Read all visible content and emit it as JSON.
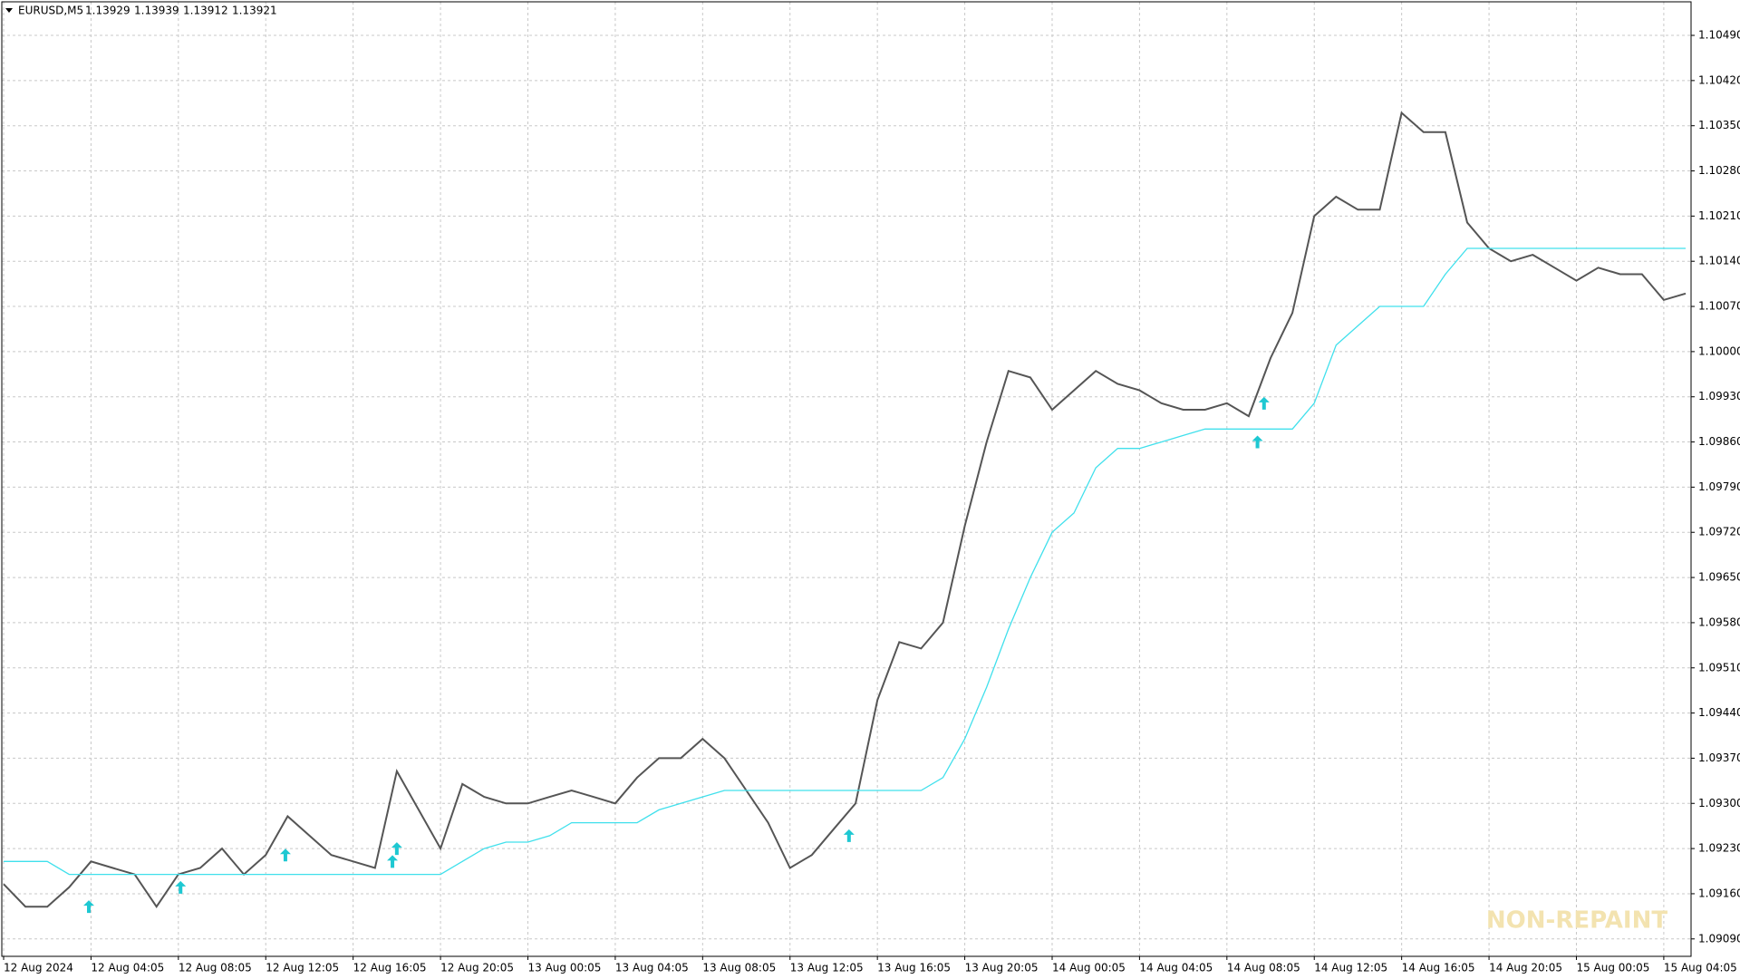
{
  "header": {
    "symbol": "EURUSD,M5",
    "quote": [
      1.13929,
      1.13939,
      1.13912,
      1.13921
    ]
  },
  "watermark": "NON-REPAINT",
  "chart_data": {
    "type": "line",
    "categories": [
      "12 Aug 2024",
      null,
      null,
      null,
      "12 Aug 04:05",
      null,
      null,
      null,
      "12 Aug 08:05",
      null,
      null,
      null,
      "12 Aug 12:05",
      null,
      null,
      null,
      "12 Aug 16:05",
      null,
      null,
      null,
      "12 Aug 20:05",
      null,
      null,
      null,
      "13 Aug 00:05",
      null,
      null,
      null,
      "13 Aug 04:05",
      null,
      null,
      null,
      "13 Aug 08:05",
      null,
      null,
      null,
      "13 Aug 12:05",
      null,
      null,
      null,
      "13 Aug 16:05",
      null,
      null,
      null,
      "13 Aug 20:05",
      null,
      null,
      null,
      "14 Aug 00:05",
      null,
      null,
      null,
      "14 Aug 04:05",
      null,
      null,
      null,
      "14 Aug 08:05",
      null,
      null,
      null,
      "14 Aug 12:05",
      null,
      null,
      null,
      "14 Aug 16:05",
      null,
      null,
      null,
      "14 Aug 20:05",
      null,
      null,
      null,
      "15 Aug 00:05",
      null,
      null,
      null,
      "15 Aug 04:05",
      null
    ],
    "series": [
      {
        "color": "#555555",
        "values": [
          1.09175,
          1.0914,
          1.0914,
          1.0917,
          1.0921,
          1.092,
          1.0919,
          1.0914,
          1.0919,
          1.092,
          1.0923,
          1.0919,
          1.0922,
          1.0928,
          1.0925,
          1.0922,
          1.0921,
          1.092,
          1.0935,
          1.0929,
          1.0923,
          1.0933,
          1.0931,
          1.093,
          1.093,
          1.0931,
          1.0932,
          1.0931,
          1.093,
          1.0934,
          1.0937,
          1.0937,
          1.094,
          1.0937,
          1.0932,
          1.0927,
          1.092,
          1.0922,
          1.0926,
          1.093,
          1.0946,
          1.0955,
          1.0954,
          1.0958,
          1.0973,
          1.0986,
          1.0997,
          1.0996,
          1.0991,
          1.0994,
          1.0997,
          1.0995,
          1.0994,
          1.0992,
          1.0991,
          1.0991,
          1.0992,
          1.099,
          1.0999,
          1.1006,
          1.1021,
          1.1024,
          1.1022,
          1.1022,
          1.1037,
          1.1034,
          1.1034,
          1.102,
          1.1016,
          1.1014,
          1.1015,
          1.1013,
          1.1011,
          1.1013,
          1.1012,
          1.1012,
          1.1008,
          1.1009
        ]
      },
      {
        "color": "#40e0ec",
        "values": [
          1.0921,
          1.0921,
          1.0921,
          1.0919,
          1.0919,
          1.0919,
          1.0919,
          1.0919,
          1.0919,
          1.0919,
          1.0919,
          1.0919,
          1.0919,
          1.0919,
          1.0919,
          1.0919,
          1.0919,
          1.0919,
          1.0919,
          1.0919,
          1.0919,
          1.0921,
          1.0923,
          1.0924,
          1.0924,
          1.0925,
          1.0927,
          1.0927,
          1.0927,
          1.0927,
          1.0929,
          1.093,
          1.0931,
          1.0932,
          1.0932,
          1.0932,
          1.0932,
          1.0932,
          1.0932,
          1.0932,
          1.0932,
          1.0932,
          1.0932,
          1.0934,
          1.094,
          1.0948,
          1.0957,
          1.0965,
          1.0972,
          1.0975,
          1.0982,
          1.0985,
          1.0985,
          1.0986,
          1.0987,
          1.0988,
          1.0988,
          1.0988,
          1.0988,
          1.0988,
          1.0992,
          1.1001,
          1.1004,
          1.1007,
          1.1007,
          1.1007,
          1.1012,
          1.1016,
          1.1016,
          1.1016,
          1.1016,
          1.1016,
          1.1016,
          1.1016,
          1.1016,
          1.1016,
          1.1016,
          1.1016
        ]
      }
    ],
    "signals": {
      "color": "#1ec8d2",
      "x": [
        3.9,
        8.1,
        12.9,
        17.8,
        18,
        38.7,
        57.4,
        57.7
      ],
      "values": [
        1.0914,
        1.0917,
        1.0922,
        1.0921,
        1.0923,
        1.0925,
        1.0986,
        1.0992
      ]
    },
    "ylim": [
      1.09063,
      1.10542
    ],
    "yticks": [
      {
        "value": 1.0909,
        "label": "1.09090"
      },
      {
        "value": 1.0916,
        "label": "1.09160"
      },
      {
        "value": 1.0923,
        "label": "1.09230"
      },
      {
        "value": 1.093,
        "label": "1.09300"
      },
      {
        "value": 1.0937,
        "label": "1.09370"
      },
      {
        "value": 1.0944,
        "label": "1.09440"
      },
      {
        "value": 1.0951,
        "label": "1.09510"
      },
      {
        "value": 1.0958,
        "label": "1.09580"
      },
      {
        "value": 1.0965,
        "label": "1.09650"
      },
      {
        "value": 1.0972,
        "label": "1.09720"
      },
      {
        "value": 1.0979,
        "label": "1.09790"
      },
      {
        "value": 1.0986,
        "label": "1.09860"
      },
      {
        "value": 1.0993,
        "label": "1.09930"
      },
      {
        "value": 1.1,
        "label": "1.10000"
      },
      {
        "value": 1.1007,
        "label": "1.10070"
      },
      {
        "value": 1.1014,
        "label": "1.10140"
      },
      {
        "value": 1.1021,
        "label": "1.10210"
      },
      {
        "value": 1.1028,
        "label": "1.10280"
      },
      {
        "value": 1.1035,
        "label": "1.10350"
      },
      {
        "value": 1.1042,
        "label": "1.10420"
      },
      {
        "value": 1.1049,
        "label": "1.10490"
      }
    ],
    "grid": true
  }
}
